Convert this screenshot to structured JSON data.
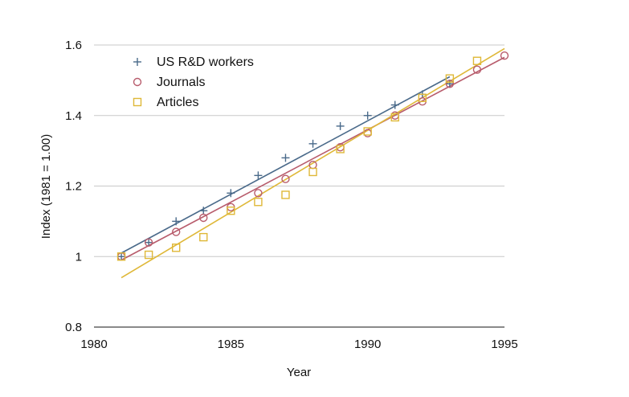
{
  "chart_data": {
    "type": "scatter",
    "title": "",
    "xlabel": "Year",
    "ylabel": "Index (1981 = 1.00)",
    "xlim": [
      1980,
      1995
    ],
    "ylim": [
      0.8,
      1.6
    ],
    "x_ticks": [
      1980,
      1985,
      1990,
      1995
    ],
    "y_ticks": [
      0.8,
      1,
      1.2,
      1.4,
      1.6
    ],
    "x_tick_labels": [
      "1980",
      "1985",
      "1990",
      "1995"
    ],
    "y_tick_labels": [
      "0.8",
      "1",
      "1.2",
      "1.4",
      "1.6"
    ],
    "grid": "horizontal",
    "legend_position": "top-left",
    "series": [
      {
        "name": "US R&D workers",
        "marker": "plus",
        "color": "#4a6a8a",
        "x": [
          1981,
          1982,
          1983,
          1984,
          1985,
          1986,
          1987,
          1988,
          1989,
          1990,
          1991,
          1992,
          1993
        ],
        "y": [
          1.0,
          1.04,
          1.1,
          1.13,
          1.18,
          1.23,
          1.28,
          1.32,
          1.37,
          1.4,
          1.43,
          1.46,
          1.49
        ],
        "trendline": {
          "x": [
            1981,
            1993
          ],
          "y": [
            1.01,
            1.51
          ]
        }
      },
      {
        "name": "Journals",
        "marker": "circle",
        "color": "#b85c6c",
        "x": [
          1981,
          1982,
          1983,
          1984,
          1985,
          1986,
          1987,
          1988,
          1989,
          1990,
          1991,
          1992,
          1993,
          1994,
          1995
        ],
        "y": [
          1.0,
          1.04,
          1.07,
          1.11,
          1.14,
          1.18,
          1.22,
          1.26,
          1.31,
          1.35,
          1.4,
          1.44,
          1.49,
          1.53,
          1.57
        ],
        "trendline": {
          "x": [
            1981,
            1995
          ],
          "y": [
            0.99,
            1.565
          ]
        }
      },
      {
        "name": "Articles",
        "marker": "square",
        "color": "#dfb838",
        "x": [
          1981,
          1982,
          1983,
          1984,
          1985,
          1986,
          1987,
          1988,
          1989,
          1990,
          1991,
          1992,
          1993,
          1994
        ],
        "y": [
          1.0,
          1.005,
          1.025,
          1.055,
          1.13,
          1.155,
          1.175,
          1.24,
          1.305,
          1.355,
          1.395,
          1.45,
          1.505,
          1.555
        ],
        "trendline": {
          "x": [
            1981,
            1995
          ],
          "y": [
            0.94,
            1.59
          ]
        }
      }
    ]
  }
}
